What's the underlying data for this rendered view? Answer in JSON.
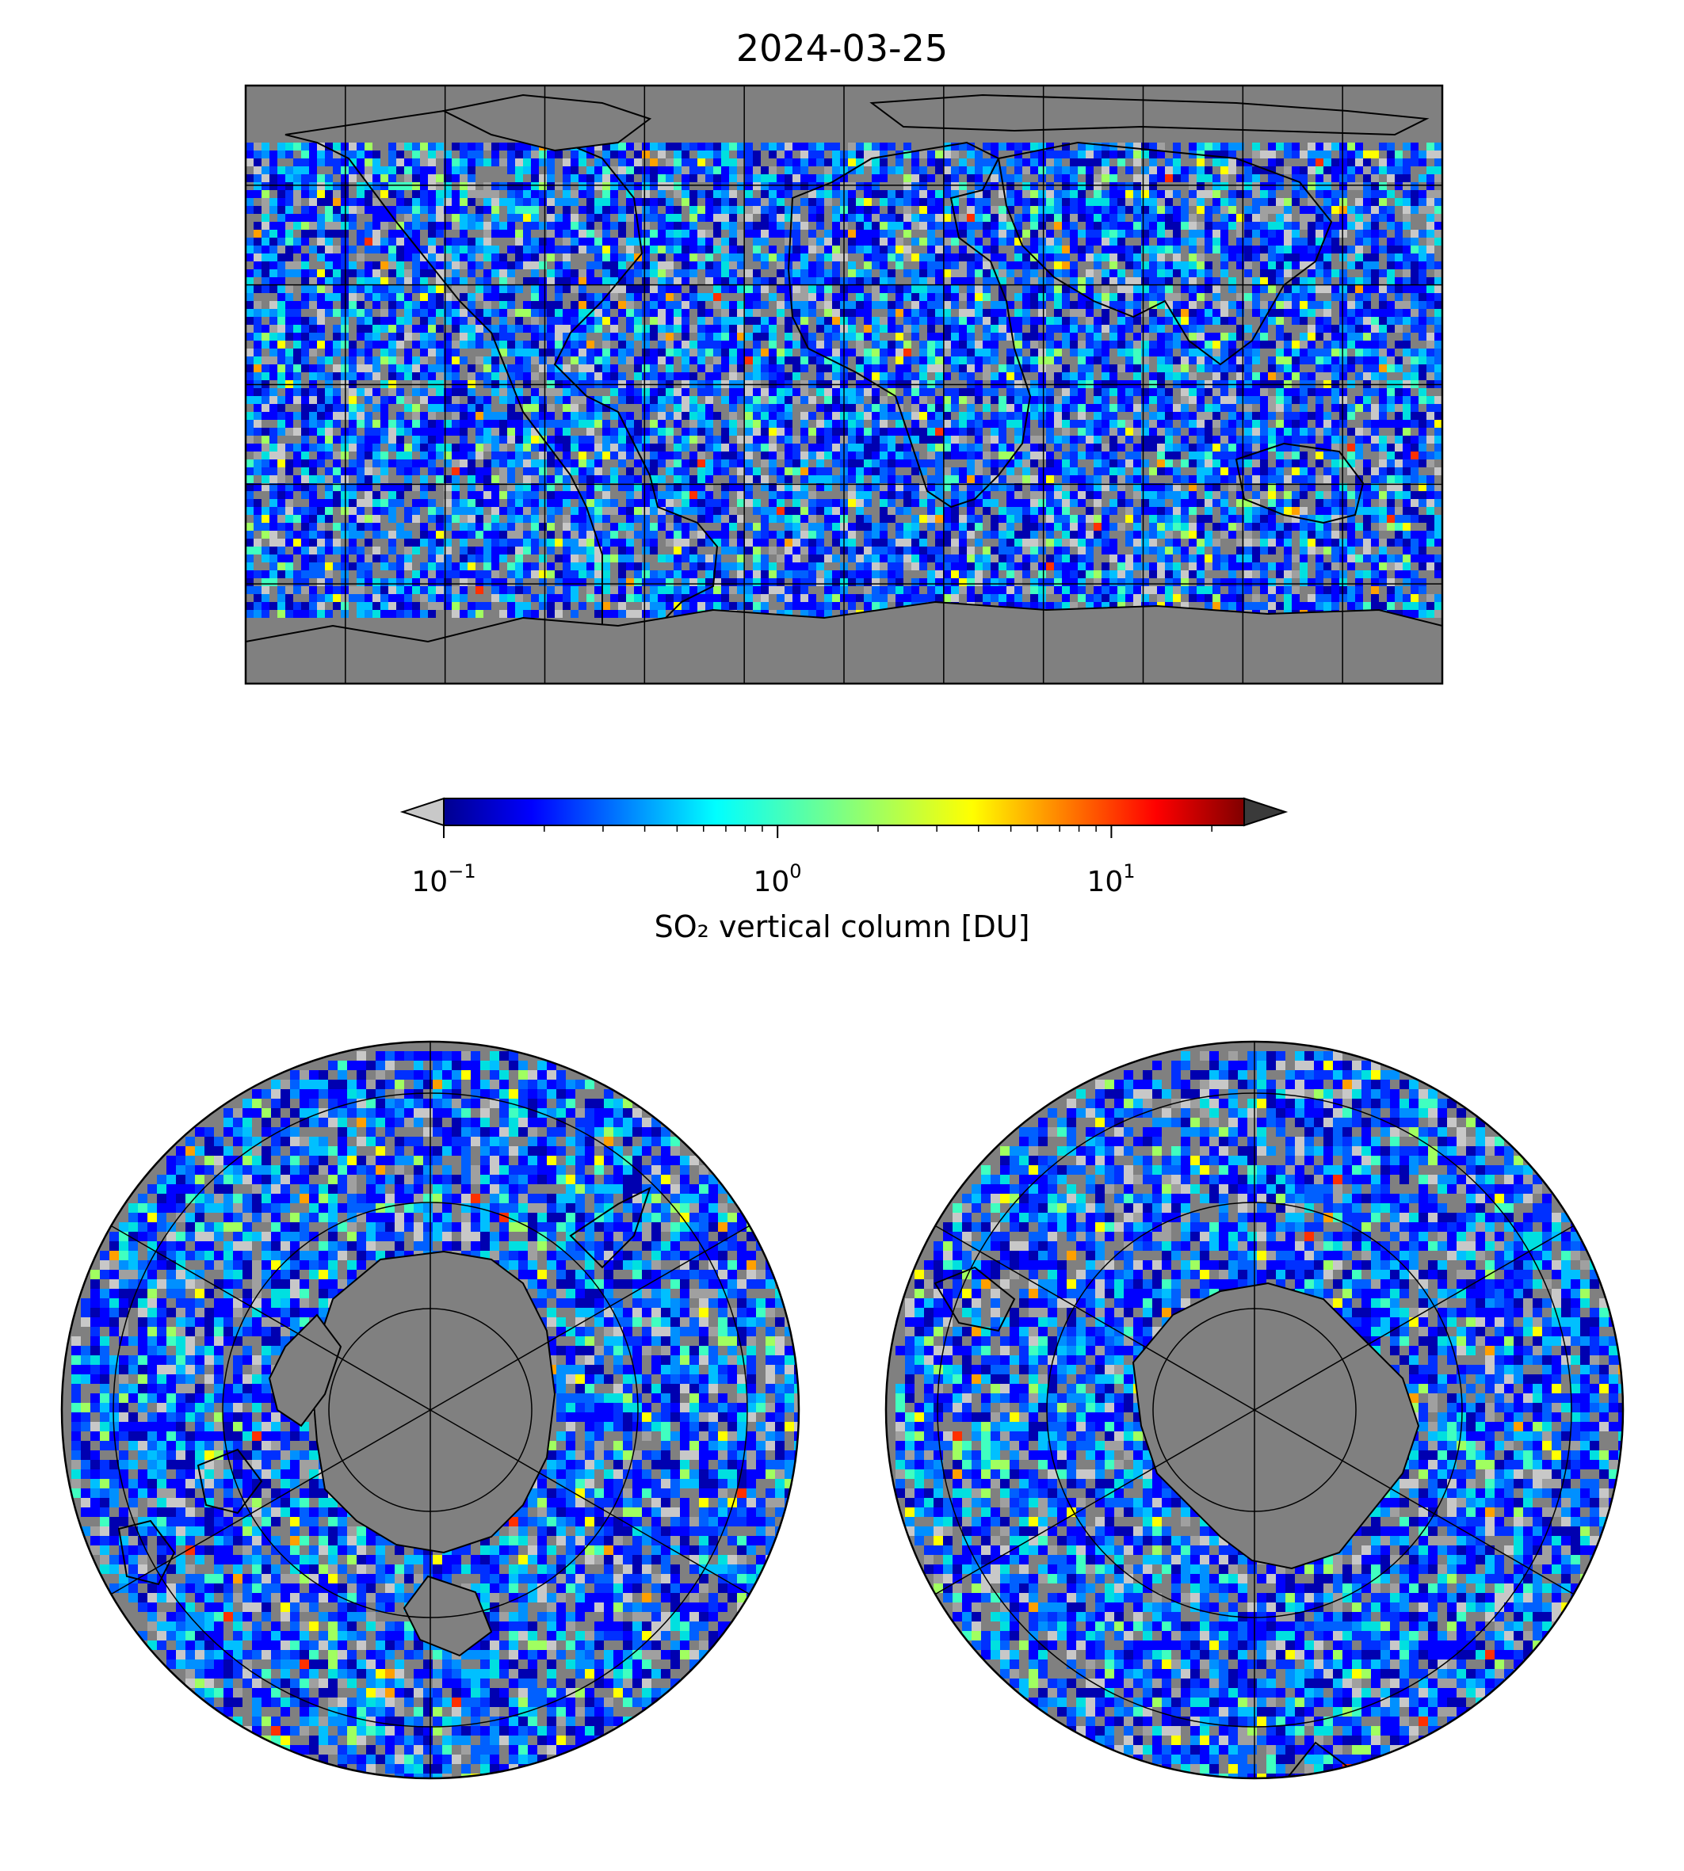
{
  "title": "2024-03-25",
  "colorbar": {
    "label": "SO₂ vertical column [DU]",
    "scale": "log",
    "range": [
      0.1,
      25
    ],
    "colormap": "jet",
    "extend": "both",
    "under_color": "#c8c8c8",
    "over_color": "#3a3a3a",
    "ticks": [
      {
        "value": 0.1,
        "base": "10",
        "exp": "−1"
      },
      {
        "value": 1,
        "base": "10",
        "exp": "0"
      },
      {
        "value": 10,
        "base": "10",
        "exp": "1"
      }
    ]
  },
  "maps": {
    "global": {
      "projection": "plate-carree",
      "gridlines": true,
      "coastlines": true
    },
    "north_polar": {
      "projection": "north-polar-stereographic",
      "gridlines": true,
      "coastlines": true
    },
    "south_polar": {
      "projection": "south-polar-stereographic",
      "gridlines": true,
      "coastlines": true
    },
    "no_data_color": "#808080"
  }
}
